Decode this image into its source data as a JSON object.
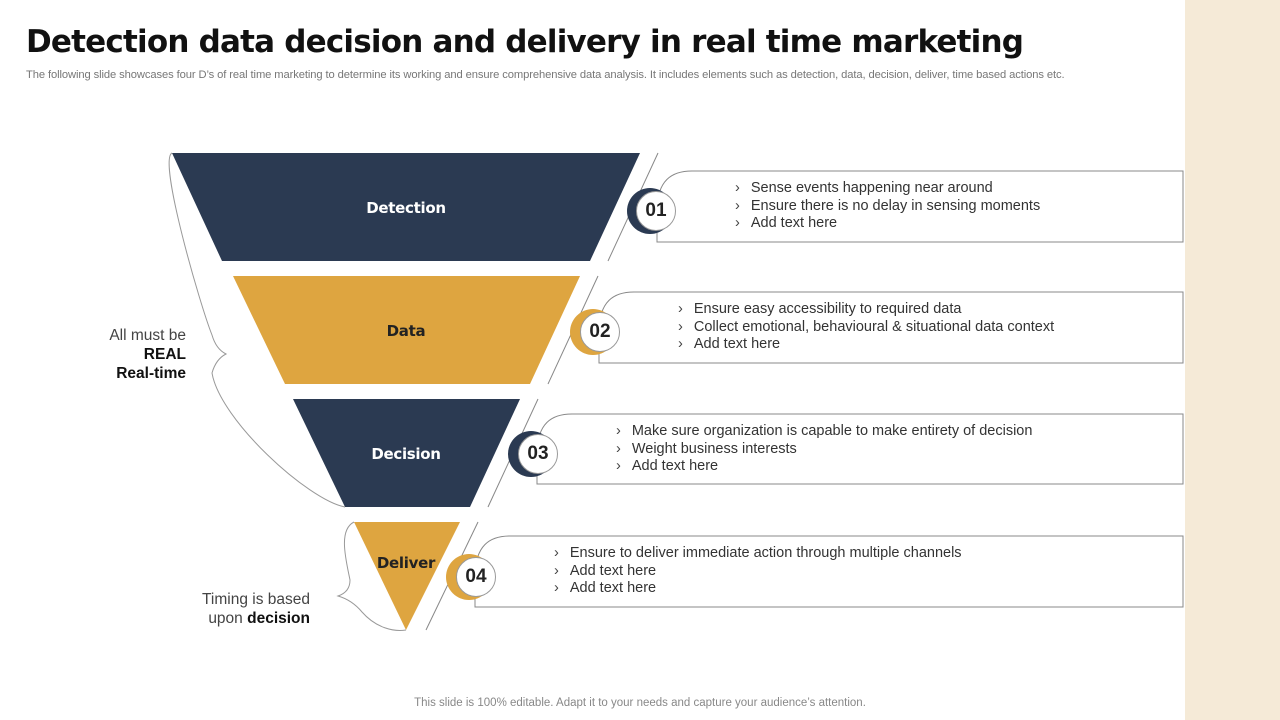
{
  "title": "Detection data decision and delivery in real time marketing",
  "subtitle": "The following slide showcases four D’s of real time marketing to determine its working and ensure comprehensive data analysis. It includes elements such as detection, data, decision, deliver, time based actions etc.",
  "colors": {
    "navy": "#2b3a52",
    "gold": "#dea540",
    "side_strip": "#f5ead7"
  },
  "stages": [
    {
      "label": "Detection",
      "number": "01",
      "items": [
        "Sense events happening near around",
        "Ensure there is no delay in sensing moments",
        "Add text here"
      ]
    },
    {
      "label": "Data",
      "number": "02",
      "items": [
        "Ensure easy accessibility to required data",
        "Collect emotional, behavioural & situational data context",
        "Add text here"
      ]
    },
    {
      "label": "Decision",
      "number": "03",
      "items": [
        "Make sure organization is capable to make entirety of decision",
        "Weight business interests",
        "Add text here"
      ]
    },
    {
      "label": "Deliver",
      "number": "04",
      "items": [
        "Ensure to deliver immediate action through multiple channels",
        "Add text here",
        "Add text here"
      ]
    }
  ],
  "notes": {
    "realtime": {
      "line1": "All must be",
      "line2": "REAL",
      "line3": "Real-time"
    },
    "timing": {
      "line1": "Timing is based",
      "line2_prefix": "upon ",
      "line2_bold": "decision"
    }
  },
  "footer": "This slide is 100% editable. Adapt it to your needs and capture your audience’s attention."
}
